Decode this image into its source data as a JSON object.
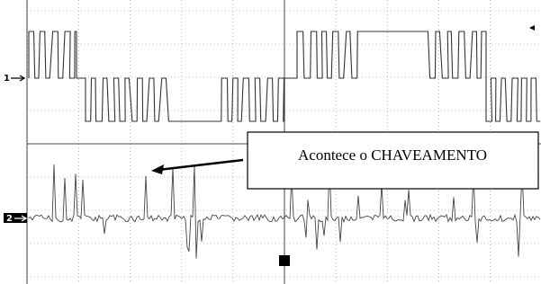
{
  "channels": [
    {
      "label": "1"
    },
    {
      "label": "2"
    }
  ],
  "annotation": "Acontece o CHAVEAMENTO"
}
